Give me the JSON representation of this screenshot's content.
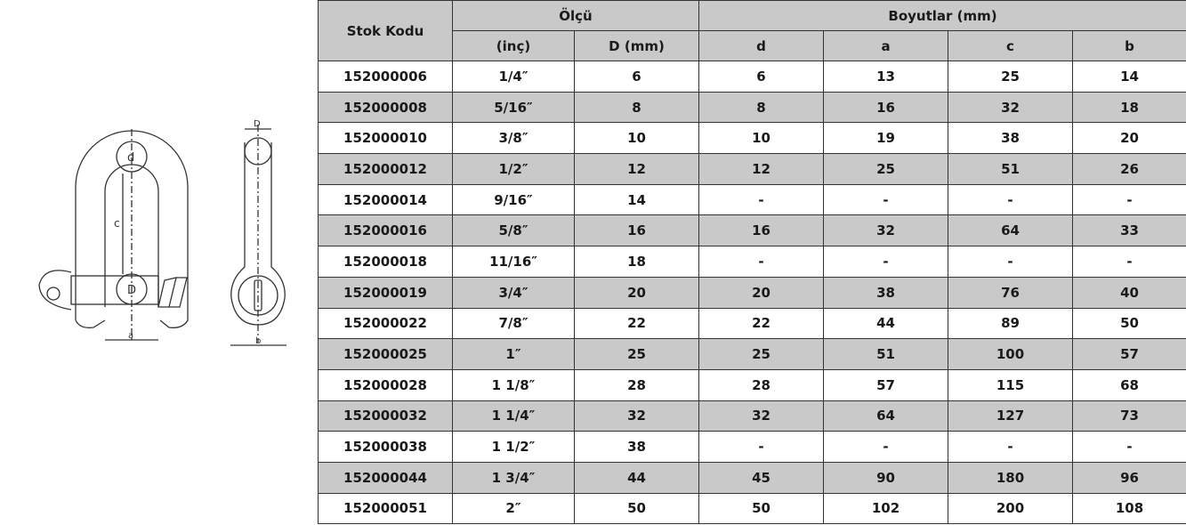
{
  "drawing": {
    "labels": {
      "d": "d",
      "c": "c",
      "D": "D",
      "a": "a",
      "b": "b",
      "D_side": "D"
    }
  },
  "table": {
    "headers": {
      "stock_code": "Stok Kodu",
      "size_group": "Ölçü",
      "dims_group": "Boyutlar (mm)",
      "inch": "(inç)",
      "D_mm": "D (mm)",
      "d": "d",
      "a": "a",
      "c": "c",
      "b": "b"
    },
    "rows": [
      [
        "152000006",
        "1/4″",
        "6",
        "6",
        "13",
        "25",
        "14"
      ],
      [
        "152000008",
        "5/16″",
        "8",
        "8",
        "16",
        "32",
        "18"
      ],
      [
        "152000010",
        "3/8″",
        "10",
        "10",
        "19",
        "38",
        "20"
      ],
      [
        "152000012",
        "1/2″",
        "12",
        "12",
        "25",
        "51",
        "26"
      ],
      [
        "152000014",
        "9/16″",
        "14",
        "-",
        "-",
        "-",
        "-"
      ],
      [
        "152000016",
        "5/8″",
        "16",
        "16",
        "32",
        "64",
        "33"
      ],
      [
        "152000018",
        "11/16″",
        "18",
        "-",
        "-",
        "-",
        "-"
      ],
      [
        "152000019",
        "3/4″",
        "20",
        "20",
        "38",
        "76",
        "40"
      ],
      [
        "152000022",
        "7/8″",
        "22",
        "22",
        "44",
        "89",
        "50"
      ],
      [
        "152000025",
        "1″",
        "25",
        "25",
        "51",
        "100",
        "57"
      ],
      [
        "152000028",
        "1 1/8″",
        "28",
        "28",
        "57",
        "115",
        "68"
      ],
      [
        "152000032",
        "1 1/4″",
        "32",
        "32",
        "64",
        "127",
        "73"
      ],
      [
        "152000038",
        "1 1/2″",
        "38",
        "-",
        "-",
        "-",
        "-"
      ],
      [
        "152000044",
        "1 3/4″",
        "44",
        "45",
        "90",
        "180",
        "96"
      ],
      [
        "152000051",
        "2″",
        "50",
        "50",
        "102",
        "200",
        "108"
      ]
    ]
  }
}
